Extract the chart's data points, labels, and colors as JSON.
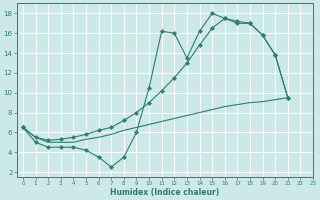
{
  "line1_x": [
    0,
    1,
    2,
    3,
    4,
    5,
    6,
    7,
    8,
    9,
    10,
    11,
    12,
    13,
    14,
    15,
    16,
    17,
    18,
    19,
    20,
    21
  ],
  "line1_y": [
    6.5,
    5.0,
    4.5,
    4.5,
    4.5,
    4.2,
    3.5,
    2.5,
    3.5,
    6.0,
    10.5,
    16.2,
    16.0,
    13.5,
    16.2,
    18.0,
    17.5,
    17.0,
    17.0,
    15.8,
    13.8,
    9.5
  ],
  "line2_x": [
    0,
    1,
    2,
    3,
    4,
    5,
    6,
    7,
    8,
    9,
    10,
    11,
    12,
    13,
    14,
    15,
    16,
    17,
    18,
    19,
    20,
    21
  ],
  "line2_y": [
    6.5,
    5.5,
    5.2,
    5.3,
    5.5,
    5.8,
    6.2,
    6.5,
    7.2,
    8.0,
    9.0,
    10.2,
    11.5,
    13.0,
    14.8,
    16.5,
    17.5,
    17.2,
    17.0,
    15.8,
    13.8,
    9.5
  ],
  "line3_x": [
    0,
    1,
    2,
    3,
    4,
    5,
    6,
    7,
    8,
    9,
    10,
    11,
    12,
    13,
    14,
    15,
    16,
    17,
    18,
    19,
    20,
    21
  ],
  "line3_y": [
    6.5,
    5.5,
    5.0,
    5.0,
    5.0,
    5.3,
    5.5,
    5.8,
    6.2,
    6.5,
    6.8,
    7.1,
    7.4,
    7.7,
    8.0,
    8.3,
    8.6,
    8.8,
    9.0,
    9.1,
    9.3,
    9.5
  ],
  "color": "#2e7d6e",
  "bg_color": "#cce8e8",
  "grid_color": "#ffffff",
  "xlabel": "Humidex (Indice chaleur)",
  "xlim": [
    -0.5,
    23
  ],
  "ylim": [
    1.5,
    19
  ],
  "xticks": [
    0,
    1,
    2,
    3,
    4,
    5,
    6,
    7,
    8,
    9,
    10,
    11,
    12,
    13,
    14,
    15,
    16,
    17,
    18,
    19,
    20,
    21,
    22,
    23
  ],
  "yticks": [
    2,
    4,
    6,
    8,
    10,
    12,
    14,
    16,
    18
  ]
}
